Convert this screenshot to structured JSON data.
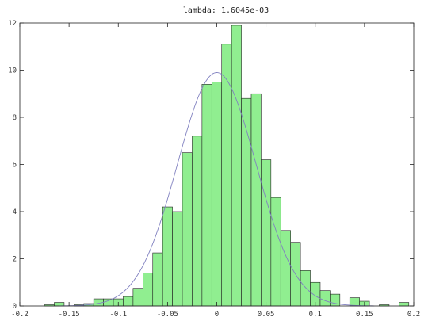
{
  "chart_data": {
    "type": "bar",
    "title": "lambda: 1.6045e-03",
    "xlabel": "",
    "ylabel": "",
    "xlim": [
      -0.2,
      0.2
    ],
    "ylim": [
      0,
      12
    ],
    "grid": false,
    "bin_width": 0.01,
    "x_ticks": [
      -0.2,
      -0.15,
      -0.1,
      -0.05,
      0,
      0.05,
      0.1,
      0.15,
      0.2
    ],
    "x_tick_labels": [
      "-0.2",
      "-0.15",
      "-0.1",
      "-0.05",
      "0",
      "0.05",
      "0.1",
      "0.15",
      "0.2"
    ],
    "y_ticks": [
      0,
      2,
      4,
      6,
      8,
      10,
      12
    ],
    "y_tick_labels": [
      "0",
      "2",
      "4",
      "6",
      "8",
      "10",
      "12"
    ],
    "bar_color": "#90ee90",
    "bar_edge_color": "#222222",
    "curve_color": "#8080c0",
    "series": [
      {
        "kind": "histogram",
        "bin_centers": [
          -0.17,
          -0.16,
          -0.14,
          -0.13,
          -0.12,
          -0.11,
          -0.1,
          -0.09,
          -0.08,
          -0.07,
          -0.06,
          -0.05,
          -0.04,
          -0.03,
          -0.02,
          -0.01,
          0.0,
          0.01,
          0.02,
          0.03,
          0.04,
          0.05,
          0.06,
          0.07,
          0.08,
          0.09,
          0.1,
          0.11,
          0.12,
          0.14,
          0.15,
          0.17,
          0.19
        ],
        "values": [
          0.05,
          0.15,
          0.05,
          0.1,
          0.3,
          0.3,
          0.3,
          0.4,
          0.75,
          1.4,
          2.25,
          4.2,
          4.0,
          6.5,
          7.2,
          9.4,
          9.5,
          11.1,
          11.9,
          8.8,
          9.0,
          6.2,
          4.6,
          3.2,
          2.7,
          1.5,
          1.0,
          0.65,
          0.5,
          0.35,
          0.2,
          0.05,
          0.15
        ]
      },
      {
        "kind": "normal-fit",
        "mean": 0.0,
        "peak": 9.9,
        "sigma": 0.04
      }
    ]
  }
}
